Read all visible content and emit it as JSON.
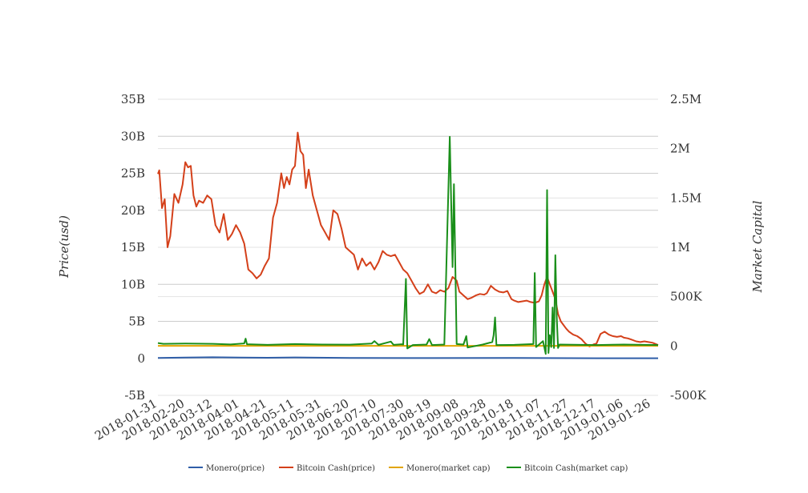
{
  "chart_data": {
    "type": "line",
    "title": "",
    "x": [
      "2018-01-31",
      "2018-02-20",
      "2018-03-12",
      "2018-04-01",
      "2018-04-21",
      "2018-05-11",
      "2018-05-31",
      "2018-06-20",
      "2018-07-10",
      "2018-07-30",
      "2018-08-19",
      "2018-09-08",
      "2018-09-28",
      "2018-10-18",
      "2018-11-07",
      "2018-11-27",
      "2018-12-17",
      "2019-01-06",
      "2019-01-26"
    ],
    "x_range": [
      "2018-01-31",
      "2019-01-31"
    ],
    "left_axis": {
      "label": "Price(usd)",
      "ticks": [
        "35B",
        "30B",
        "25B",
        "20B",
        "15B",
        "10B",
        "5B",
        "0",
        "-5B"
      ],
      "range": [
        -5,
        35
      ],
      "unit": "B"
    },
    "right_axis": {
      "label": "Market Capital",
      "ticks": [
        "2.5M",
        "2M",
        "1.5M",
        "1M",
        "500K",
        "0",
        "-500K"
      ],
      "range": [
        -500,
        2500
      ],
      "unit": "K"
    },
    "grid": true,
    "legend_position": "bottom",
    "series": [
      {
        "name": "Monero(price)",
        "axis": "left",
        "color": "#2f5ea8",
        "points": [
          [
            "2018-01-31",
            0.05
          ],
          [
            "2018-02-20",
            0.1
          ],
          [
            "2018-03-12",
            0.15
          ],
          [
            "2018-04-01",
            0.1
          ],
          [
            "2018-04-21",
            0.08
          ],
          [
            "2018-05-11",
            0.12
          ],
          [
            "2018-06-20",
            0.06
          ],
          [
            "2018-08-19",
            0.04
          ],
          [
            "2018-10-18",
            0.06
          ],
          [
            "2018-12-17",
            0.02
          ],
          [
            "2019-01-31",
            0.02
          ]
        ]
      },
      {
        "name": "Bitcoin Cash(price)",
        "axis": "left",
        "color": "#d4401a",
        "points": [
          [
            "2018-01-31",
            24.9
          ],
          [
            "2018-02-01",
            25.4
          ],
          [
            "2018-02-03",
            20.3
          ],
          [
            "2018-02-05",
            21.5
          ],
          [
            "2018-02-07",
            15.0
          ],
          [
            "2018-02-09",
            16.5
          ],
          [
            "2018-02-12",
            22.2
          ],
          [
            "2018-02-15",
            21.0
          ],
          [
            "2018-02-18",
            23.5
          ],
          [
            "2018-02-20",
            26.5
          ],
          [
            "2018-02-22",
            25.8
          ],
          [
            "2018-02-24",
            26.0
          ],
          [
            "2018-02-26",
            22.0
          ],
          [
            "2018-02-28",
            20.5
          ],
          [
            "2018-03-02",
            21.3
          ],
          [
            "2018-03-05",
            21.0
          ],
          [
            "2018-03-08",
            22.0
          ],
          [
            "2018-03-11",
            21.5
          ],
          [
            "2018-03-14",
            18.0
          ],
          [
            "2018-03-17",
            17.0
          ],
          [
            "2018-03-20",
            19.5
          ],
          [
            "2018-03-23",
            16.0
          ],
          [
            "2018-03-26",
            16.8
          ],
          [
            "2018-03-29",
            18.0
          ],
          [
            "2018-04-01",
            17.0
          ],
          [
            "2018-04-04",
            15.5
          ],
          [
            "2018-04-07",
            12.0
          ],
          [
            "2018-04-10",
            11.5
          ],
          [
            "2018-04-13",
            10.8
          ],
          [
            "2018-04-16",
            11.3
          ],
          [
            "2018-04-19",
            12.5
          ],
          [
            "2018-04-22",
            13.5
          ],
          [
            "2018-04-25",
            19.0
          ],
          [
            "2018-04-28",
            21.0
          ],
          [
            "2018-05-01",
            25.0
          ],
          [
            "2018-05-03",
            23.0
          ],
          [
            "2018-05-05",
            24.5
          ],
          [
            "2018-05-07",
            23.5
          ],
          [
            "2018-05-09",
            25.5
          ],
          [
            "2018-05-11",
            26.0
          ],
          [
            "2018-05-13",
            30.5
          ],
          [
            "2018-05-15",
            28.0
          ],
          [
            "2018-05-17",
            27.5
          ],
          [
            "2018-05-19",
            23.0
          ],
          [
            "2018-05-21",
            25.5
          ],
          [
            "2018-05-24",
            22.0
          ],
          [
            "2018-05-27",
            20.0
          ],
          [
            "2018-05-30",
            18.0
          ],
          [
            "2018-06-02",
            17.0
          ],
          [
            "2018-06-05",
            16.0
          ],
          [
            "2018-06-08",
            20.0
          ],
          [
            "2018-06-11",
            19.5
          ],
          [
            "2018-06-14",
            17.5
          ],
          [
            "2018-06-17",
            15.0
          ],
          [
            "2018-06-20",
            14.5
          ],
          [
            "2018-06-23",
            14.0
          ],
          [
            "2018-06-26",
            12.0
          ],
          [
            "2018-06-29",
            13.5
          ],
          [
            "2018-07-02",
            12.5
          ],
          [
            "2018-07-05",
            13.0
          ],
          [
            "2018-07-08",
            12.0
          ],
          [
            "2018-07-11",
            13.0
          ],
          [
            "2018-07-14",
            14.5
          ],
          [
            "2018-07-17",
            14.0
          ],
          [
            "2018-07-20",
            13.8
          ],
          [
            "2018-07-23",
            14.0
          ],
          [
            "2018-07-26",
            13.0
          ],
          [
            "2018-07-29",
            12.0
          ],
          [
            "2018-08-01",
            11.5
          ],
          [
            "2018-08-04",
            10.5
          ],
          [
            "2018-08-07",
            9.5
          ],
          [
            "2018-08-10",
            8.7
          ],
          [
            "2018-08-13",
            9.0
          ],
          [
            "2018-08-16",
            10.0
          ],
          [
            "2018-08-19",
            9.0
          ],
          [
            "2018-08-22",
            8.8
          ],
          [
            "2018-08-25",
            9.2
          ],
          [
            "2018-08-28",
            9.0
          ],
          [
            "2018-08-31",
            9.5
          ],
          [
            "2018-09-03",
            11.0
          ],
          [
            "2018-09-06",
            10.5
          ],
          [
            "2018-09-08",
            9.0
          ],
          [
            "2018-09-11",
            8.5
          ],
          [
            "2018-09-14",
            8.0
          ],
          [
            "2018-09-17",
            8.2
          ],
          [
            "2018-09-20",
            8.5
          ],
          [
            "2018-09-23",
            8.7
          ],
          [
            "2018-09-26",
            8.6
          ],
          [
            "2018-09-28",
            8.8
          ],
          [
            "2018-10-01",
            9.8
          ],
          [
            "2018-10-04",
            9.3
          ],
          [
            "2018-10-07",
            9.0
          ],
          [
            "2018-10-10",
            8.9
          ],
          [
            "2018-10-13",
            9.1
          ],
          [
            "2018-10-16",
            8.0
          ],
          [
            "2018-10-18",
            7.8
          ],
          [
            "2018-10-21",
            7.6
          ],
          [
            "2018-10-24",
            7.7
          ],
          [
            "2018-10-27",
            7.8
          ],
          [
            "2018-10-30",
            7.6
          ],
          [
            "2018-11-02",
            7.5
          ],
          [
            "2018-11-05",
            7.7
          ],
          [
            "2018-11-07",
            8.5
          ],
          [
            "2018-11-09",
            10.0
          ],
          [
            "2018-11-11",
            11.0
          ],
          [
            "2018-11-13",
            10.0
          ],
          [
            "2018-11-15",
            9.0
          ],
          [
            "2018-11-17",
            8.0
          ],
          [
            "2018-11-19",
            6.0
          ],
          [
            "2018-11-21",
            5.0
          ],
          [
            "2018-11-23",
            4.5
          ],
          [
            "2018-11-25",
            4.0
          ],
          [
            "2018-11-27",
            3.6
          ],
          [
            "2018-11-30",
            3.2
          ],
          [
            "2018-12-03",
            3.0
          ],
          [
            "2018-12-06",
            2.6
          ],
          [
            "2018-12-09",
            2.0
          ],
          [
            "2018-12-12",
            1.6
          ],
          [
            "2018-12-15",
            1.9
          ],
          [
            "2018-12-17",
            2.0
          ],
          [
            "2018-12-20",
            3.3
          ],
          [
            "2018-12-23",
            3.6
          ],
          [
            "2018-12-26",
            3.2
          ],
          [
            "2018-12-29",
            3.0
          ],
          [
            "2019-01-01",
            2.9
          ],
          [
            "2019-01-04",
            3.0
          ],
          [
            "2019-01-06",
            2.8
          ],
          [
            "2019-01-09",
            2.7
          ],
          [
            "2019-01-12",
            2.5
          ],
          [
            "2019-01-15",
            2.3
          ],
          [
            "2019-01-18",
            2.2
          ],
          [
            "2019-01-21",
            2.3
          ],
          [
            "2019-01-24",
            2.2
          ],
          [
            "2019-01-27",
            2.1
          ],
          [
            "2019-01-31",
            1.8
          ]
        ]
      },
      {
        "name": "Monero(market cap)",
        "axis": "right",
        "color": "#e2a400",
        "points": [
          [
            "2018-01-31",
            2
          ],
          [
            "2018-06-01",
            2
          ],
          [
            "2018-10-01",
            2
          ],
          [
            "2019-01-31",
            2
          ]
        ]
      },
      {
        "name": "Bitcoin Cash(market cap)",
        "axis": "right",
        "color": "#1a8f1a",
        "points": [
          [
            "2018-01-31",
            30
          ],
          [
            "2018-02-04",
            22
          ],
          [
            "2018-02-20",
            25
          ],
          [
            "2018-03-12",
            22
          ],
          [
            "2018-03-25",
            16
          ],
          [
            "2018-04-04",
            26
          ],
          [
            "2018-04-05",
            75
          ],
          [
            "2018-04-06",
            18
          ],
          [
            "2018-04-21",
            12
          ],
          [
            "2018-05-11",
            20
          ],
          [
            "2018-05-31",
            15
          ],
          [
            "2018-06-20",
            14
          ],
          [
            "2018-07-06",
            25
          ],
          [
            "2018-07-08",
            50
          ],
          [
            "2018-07-11",
            12
          ],
          [
            "2018-07-20",
            45
          ],
          [
            "2018-07-22",
            12
          ],
          [
            "2018-07-28",
            18
          ],
          [
            "2018-07-29",
            15
          ],
          [
            "2018-07-31",
            680
          ],
          [
            "2018-08-01",
            -25
          ],
          [
            "2018-08-05",
            10
          ],
          [
            "2018-08-15",
            15
          ],
          [
            "2018-08-17",
            70
          ],
          [
            "2018-08-19",
            10
          ],
          [
            "2018-08-28",
            15
          ],
          [
            "2018-09-01",
            2120
          ],
          [
            "2018-09-03",
            800
          ],
          [
            "2018-09-04",
            1640
          ],
          [
            "2018-09-06",
            20
          ],
          [
            "2018-09-11",
            15
          ],
          [
            "2018-09-13",
            100
          ],
          [
            "2018-09-14",
            -15
          ],
          [
            "2018-09-25",
            15
          ],
          [
            "2018-10-02",
            40
          ],
          [
            "2018-10-03",
            110
          ],
          [
            "2018-10-04",
            290
          ],
          [
            "2018-10-05",
            10
          ],
          [
            "2018-10-18",
            12
          ],
          [
            "2018-11-01",
            20
          ],
          [
            "2018-11-02",
            740
          ],
          [
            "2018-11-03",
            -10
          ],
          [
            "2018-11-08",
            50
          ],
          [
            "2018-11-10",
            -80
          ],
          [
            "2018-11-11",
            1580
          ],
          [
            "2018-11-12",
            -70
          ],
          [
            "2018-11-13",
            110
          ],
          [
            "2018-11-14",
            -10
          ],
          [
            "2018-11-15",
            390
          ],
          [
            "2018-11-16",
            -20
          ],
          [
            "2018-11-17",
            920
          ],
          [
            "2018-11-18",
            300
          ],
          [
            "2018-11-19",
            -20
          ],
          [
            "2018-11-20",
            15
          ],
          [
            "2018-12-17",
            10
          ],
          [
            "2019-01-06",
            15
          ],
          [
            "2019-01-31",
            10
          ]
        ]
      }
    ]
  }
}
